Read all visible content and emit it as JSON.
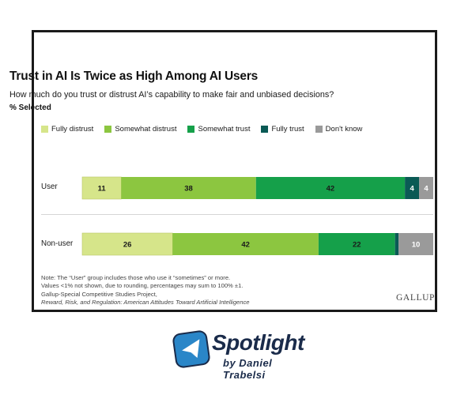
{
  "chart_data": {
    "type": "bar",
    "orientation": "horizontal",
    "stacked": true,
    "title": "Trust in AI Is Twice as High Among AI Users",
    "subtitle": "How much do you trust or distrust AI’s capability to make fair and unbiased decisions?",
    "measure_label": "% Selected",
    "categories": [
      "User",
      "Non-user"
    ],
    "series": [
      {
        "name": "Fully distrust",
        "color": "#d6e58a",
        "values": [
          11,
          26
        ]
      },
      {
        "name": "Somewhat distrust",
        "color": "#8cc640",
        "values": [
          38,
          42
        ]
      },
      {
        "name": "Somewhat trust",
        "color": "#15a04a",
        "values": [
          42,
          22
        ]
      },
      {
        "name": "Fully trust",
        "color": "#0a5a55",
        "values": [
          4,
          1
        ]
      },
      {
        "name": "Don't know",
        "color": "#9a9a9a",
        "values": [
          4,
          10
        ]
      }
    ],
    "data_labels": [
      [
        "11",
        "38",
        "42",
        "4",
        "4"
      ],
      [
        "26",
        "42",
        "22",
        "",
        "10"
      ]
    ],
    "legend_position": "top",
    "grid": false
  },
  "note": {
    "line1": "Note: The “User” group includes those who use it “sometimes” or more.",
    "line2": "Values <1% not shown, due to rounding, percentages may sum to 100% ±1."
  },
  "source": {
    "line1": "Gallup-Special Competitive Studies Project,",
    "line2": "Reward, Risk, and Regulation: American Attitudes Toward Artificial Intelligence"
  },
  "brand": "GALLUP",
  "spotlight": {
    "word": "Spotlight",
    "byline": "by Daniel Trabelsi",
    "icon": "paper-plane-icon"
  }
}
